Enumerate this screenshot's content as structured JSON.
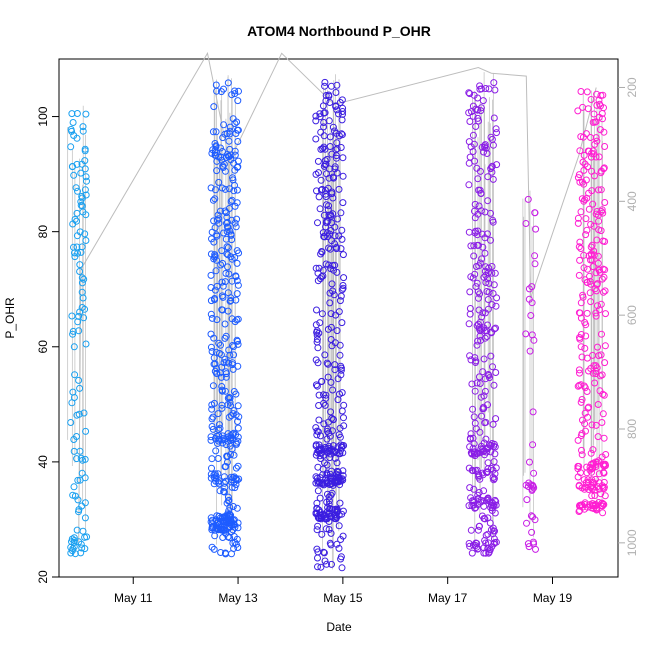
{
  "chart_data": {
    "type": "scatter",
    "title": "ATOM4 Northbound P_OHR",
    "xlabel": "Date",
    "ylabel": "P_OHR",
    "x_ticks": [
      "May 11",
      "May 13",
      "May 15",
      "May 17",
      "May 19"
    ],
    "y_ticks": [
      "20",
      "40",
      "60",
      "80",
      "100"
    ],
    "y2_ticks": [
      "200",
      "400",
      "600",
      "800",
      "1000"
    ],
    "xlim": [
      "2024-05-09T14:00",
      "2024-05-20T06:00"
    ],
    "ylim": [
      20,
      110
    ],
    "y2lim": [
      1060,
      150
    ],
    "grid": false,
    "colors": {
      "May 10": "#1aa0f0",
      "May 12": "#1e5cff",
      "May 14": "#3b1ee0",
      "May 17": "#8a1ee6",
      "May 18": "#c81ee6",
      "May 19": "#ff1ed2",
      "line": "#bdbdbd"
    },
    "clusters": [
      {
        "date": "2024-05-09T23:00",
        "color": "#1aa0f0",
        "n": 120,
        "ymin": 22,
        "ymax": 101,
        "dense": [
          25,
          26,
          52,
          66,
          87
        ]
      },
      {
        "date": "2024-05-12T18:00",
        "color": "#1e5cff",
        "n": 420,
        "ymin": 24,
        "ymax": 106,
        "dense": [
          29,
          30,
          37,
          44
        ]
      },
      {
        "date": "2024-05-14T18:00",
        "color": "#3b1ee0",
        "n": 420,
        "ymin": 21,
        "ymax": 106,
        "dense": [
          31,
          37,
          42
        ]
      },
      {
        "date": "2024-05-17T16:00",
        "color": "#8a1ee6",
        "n": 330,
        "ymin": 24,
        "ymax": 106,
        "dense": [
          25,
          33,
          38,
          42
        ]
      },
      {
        "date": "2024-05-18T14:00",
        "color": "#c81ee6",
        "n": 40,
        "ymin": 25,
        "ymax": 86,
        "dense": [
          25,
          27,
          36
        ]
      },
      {
        "date": "2024-05-19T18:00",
        "color": "#ff1ed2",
        "n": 300,
        "ymin": 32,
        "ymax": 105,
        "dense": [
          32,
          36,
          39
        ]
      }
    ],
    "y2_line": [
      {
        "x": "2024-05-09T23:00",
        "y2": 1000
      },
      {
        "x": "2024-05-10T00:00",
        "y2": 520
      },
      {
        "x": "2024-05-12T10:00",
        "y2": 140
      },
      {
        "x": "2024-05-12T20:00",
        "y2": 330
      },
      {
        "x": "2024-05-13T20:00",
        "y2": 140
      },
      {
        "x": "2024-05-14T20:00",
        "y2": 230
      },
      {
        "x": "2024-05-17T14:00",
        "y2": 165
      },
      {
        "x": "2024-05-17T20:00",
        "y2": 175
      },
      {
        "x": "2024-05-18T12:00",
        "y2": 180
      },
      {
        "x": "2024-05-18T14:00",
        "y2": 570
      },
      {
        "x": "2024-05-19T12:00",
        "y2": 320
      },
      {
        "x": "2024-05-19T20:00",
        "y2": 200
      }
    ]
  }
}
